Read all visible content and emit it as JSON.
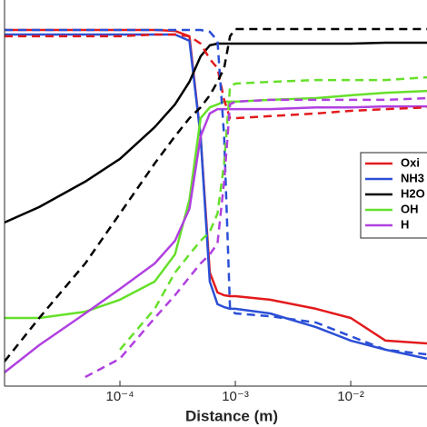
{
  "chart_data": {
    "type": "line",
    "xlabel": "Distance (m)",
    "xscale": "log",
    "yscale": "log",
    "xlim": [
      1e-05,
      0.0458
    ],
    "ylim": [
      0.000843,
      1.186
    ],
    "xticks": [
      {
        "value": 0.0001,
        "label": "10⁻⁴"
      },
      {
        "value": 0.001,
        "label": "10⁻³"
      },
      {
        "value": 0.01,
        "label": "10⁻²"
      }
    ],
    "x": [
      1e-05,
      2e-05,
      5e-05,
      0.0001,
      0.0002,
      0.0003,
      0.0004,
      0.0005,
      0.0006,
      0.0007,
      0.0008,
      0.0009,
      0.001,
      0.002,
      0.005,
      0.01,
      0.02,
      0.0458
    ],
    "series": [
      {
        "name": "Oxi",
        "color": "#e31a1c",
        "values": [
          0.676,
          0.676,
          0.676,
          0.676,
          0.676,
          0.664,
          0.6,
          0.0918,
          0.00711,
          0.00489,
          0.00464,
          0.00456,
          0.00456,
          0.00427,
          0.0036,
          0.00303,
          0.00198,
          0.00188
        ]
      },
      {
        "name": "NH3",
        "color": "#2b4fd6",
        "values": [
          0.62,
          0.62,
          0.62,
          0.62,
          0.62,
          0.62,
          0.551,
          0.0918,
          0.006,
          0.00392,
          0.00372,
          0.0036,
          0.0036,
          0.0033,
          0.00255,
          0.00198,
          0.00167,
          0.00141
        ]
      },
      {
        "name": "H2O",
        "color": "#000000",
        "values": [
          0.0182,
          0.0243,
          0.0392,
          0.06,
          0.109,
          0.167,
          0.255,
          0.412,
          0.506,
          0.523,
          0.523,
          0.523,
          0.523,
          0.523,
          0.523,
          0.523,
          0.532,
          0.532
        ]
      },
      {
        "name": "OH",
        "color": "#66e02a",
        "values": [
          0.00303,
          0.00303,
          0.00341,
          0.00427,
          0.006,
          0.01,
          0.0278,
          0.129,
          0.158,
          0.167,
          0.176,
          0.176,
          0.176,
          0.182,
          0.188,
          0.198,
          0.208,
          0.215
        ]
      },
      {
        "name": "H",
        "color": "#b040e0",
        "values": [
          0.00109,
          0.00182,
          0.0033,
          0.00523,
          0.00843,
          0.0129,
          0.0235,
          0.0918,
          0.141,
          0.153,
          0.153,
          0.153,
          0.153,
          0.153,
          0.158,
          0.158,
          0.161,
          0.161
        ]
      },
      {
        "color": "#e31a1c",
        "dash": true,
        "values": [
          0.6,
          0.6,
          0.6,
          0.6,
          0.62,
          0.62,
          0.6,
          0.523,
          0.392,
          0.33,
          0.182,
          0.129,
          0.129,
          0.134,
          0.141,
          0.148,
          0.153,
          0.158
        ]
      },
      {
        "color": "#2b4fd6",
        "dash": true,
        "values": [
          0.676,
          0.676,
          0.676,
          0.676,
          0.676,
          0.676,
          0.676,
          0.676,
          0.653,
          0.551,
          0.0918,
          0.0036,
          0.0033,
          0.00313,
          0.00278,
          0.00215,
          0.00167,
          0.00153
        ]
      },
      {
        "color": "#000000",
        "dash": true,
        "values": [
          0.00134,
          0.00303,
          0.00843,
          0.0215,
          0.0551,
          0.0918,
          0.129,
          0.158,
          0.198,
          0.255,
          0.33,
          0.6,
          0.687,
          0.687,
          0.687,
          0.687,
          0.687,
          0.687
        ]
      },
      {
        "color": "#66e02a",
        "dash": true,
        "values": [
          null,
          null,
          null,
          0.00167,
          0.0036,
          0.00711,
          0.01,
          0.0129,
          0.0153,
          0.0215,
          0.0551,
          0.234,
          0.247,
          0.255,
          0.264,
          0.264,
          0.264,
          0.278
        ]
      },
      {
        "color": "#b040e0",
        "dash": true,
        "values": [
          null,
          null,
          0.001,
          0.00141,
          0.00303,
          0.00464,
          0.00653,
          0.00843,
          0.01,
          0.0123,
          0.0392,
          0.167,
          0.176,
          0.182,
          0.182,
          0.182,
          0.182,
          0.188
        ]
      }
    ]
  }
}
